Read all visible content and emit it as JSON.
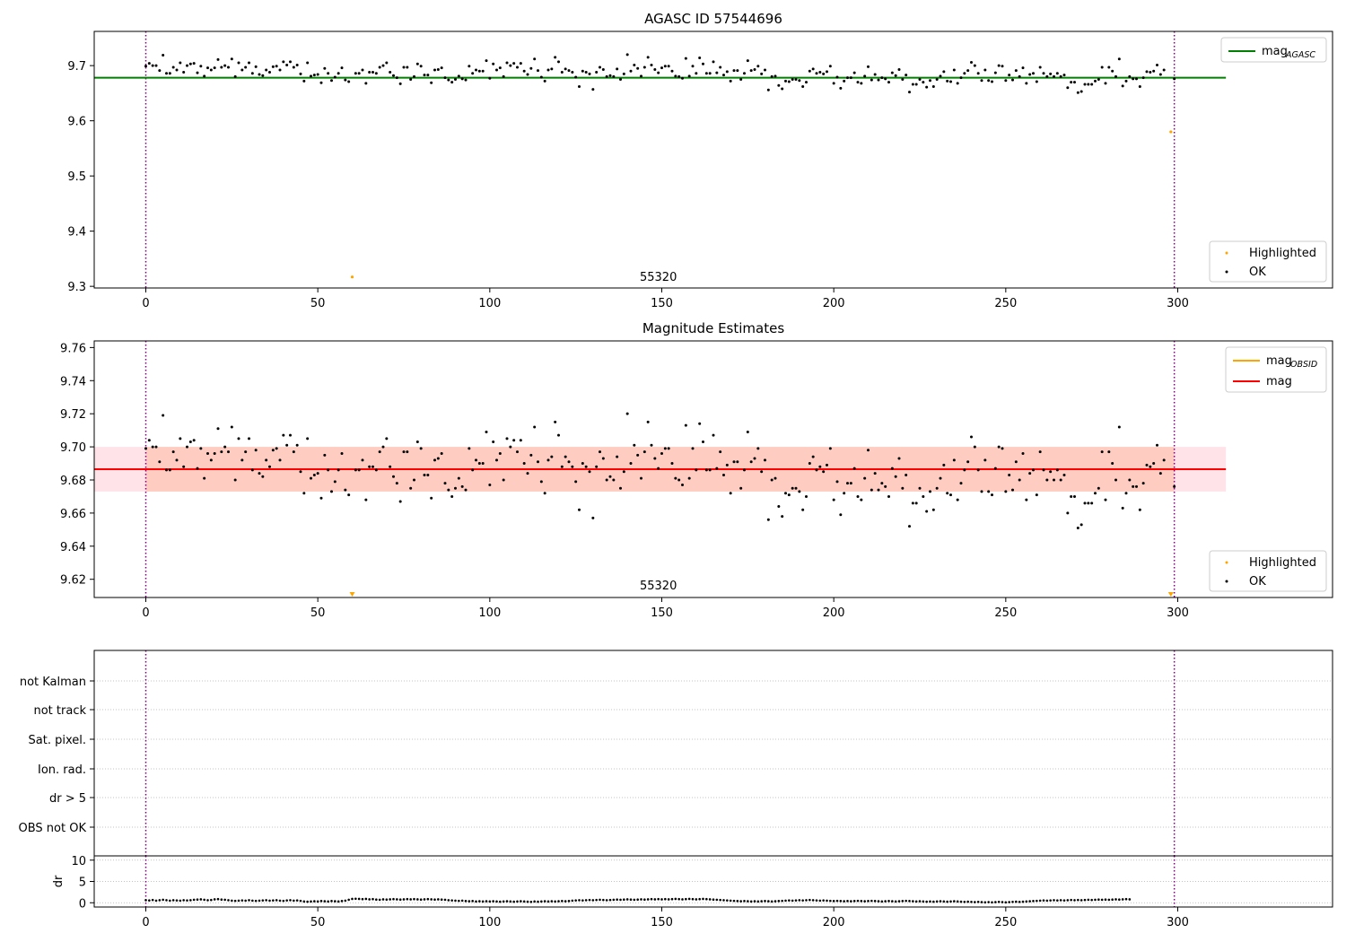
{
  "chart_data": [
    {
      "type": "scatter",
      "title": "AGASC ID 57544696",
      "xlim": [
        -15,
        345
      ],
      "ylim": [
        9.297,
        9.762
      ],
      "x_ticks": [
        0,
        50,
        100,
        150,
        200,
        250,
        300
      ],
      "y_ticks": [
        9.3,
        9.4,
        9.5,
        9.6,
        9.7
      ],
      "y_tick_labels": [
        "9.3",
        "9.4",
        "9.5",
        "9.6",
        "9.7"
      ],
      "vlines": [
        0,
        299
      ],
      "obsid_label": "55320",
      "obsid_label_x": 149,
      "lines": [
        {
          "name": "mag_AGASC",
          "y": 9.678,
          "x_range": [
            -15,
            314
          ],
          "color": "#008000"
        }
      ],
      "legend_lines": [
        {
          "main": "mag",
          "sub": "AGASC",
          "color": "#008000"
        }
      ],
      "legend_points": [
        {
          "label": "Highlighted",
          "color": "#ffa500"
        },
        {
          "label": "OK",
          "color": "#000000"
        }
      ],
      "highlighted": [
        {
          "x": 60,
          "y": 9.317
        },
        {
          "x": 298,
          "y": 9.58
        }
      ],
      "ok_series": "ok_points"
    },
    {
      "type": "scatter",
      "title": "Magnitude Estimates",
      "xlim": [
        -15,
        345
      ],
      "ylim": [
        9.609,
        9.764
      ],
      "x_ticks": [
        0,
        50,
        100,
        150,
        200,
        250,
        300
      ],
      "y_ticks": [
        9.62,
        9.64,
        9.66,
        9.68,
        9.7,
        9.72,
        9.74,
        9.76
      ],
      "y_tick_labels": [
        "9.62",
        "9.64",
        "9.66",
        "9.68",
        "9.70",
        "9.72",
        "9.74",
        "9.76"
      ],
      "vlines": [
        0,
        299
      ],
      "obsid_label": "55320",
      "obsid_label_x": 149,
      "bands": [
        {
          "x_range": [
            -15,
            314
          ],
          "y_range": [
            9.673,
            9.7
          ],
          "color": "#ffc0cb",
          "opacity": 0.45
        },
        {
          "x_range": [
            0,
            299
          ],
          "y_range": [
            9.673,
            9.7
          ],
          "color": "#ffa07a",
          "opacity": 0.35
        }
      ],
      "lines": [
        {
          "name": "mag_OBSID",
          "y": 9.6865,
          "x_range": [
            0,
            299
          ],
          "color": "#ffa500"
        },
        {
          "name": "mag",
          "y": 9.6865,
          "x_range": [
            -15,
            314
          ],
          "color": "#ff0000"
        }
      ],
      "legend_lines": [
        {
          "main": "mag",
          "sub": "OBSID",
          "color": "#ffa500"
        },
        {
          "main": "mag",
          "sub": "",
          "color": "#ff0000"
        }
      ],
      "legend_points": [
        {
          "label": "Highlighted",
          "color": "#ffa500"
        },
        {
          "label": "OK",
          "color": "#000000"
        }
      ],
      "highlighted_markers": [
        {
          "x": 60,
          "marker": "triangle-down"
        },
        {
          "x": 298,
          "marker": "triangle-down"
        }
      ],
      "ok_series": "ok_points"
    },
    {
      "type": "scatter",
      "title": "",
      "xlim": [
        -15,
        345
      ],
      "x_ticks": [
        0,
        50,
        100,
        150,
        200,
        250,
        300
      ],
      "flag_rows": [
        "not Kalman",
        "not track",
        "Sat. pixel.",
        "Ion. rad.",
        "dr > 5",
        "OBS not OK"
      ],
      "vlines": [
        0,
        299
      ],
      "grid": "dotted"
    },
    {
      "type": "line",
      "title": "",
      "ylabel": "dr",
      "xlim": [
        -15,
        345
      ],
      "ylim": [
        -1,
        11
      ],
      "x_ticks": [
        0,
        50,
        100,
        150,
        200,
        250,
        300
      ],
      "x_tick_labels": [
        "0",
        "50",
        "100",
        "150",
        "200",
        "250",
        "300"
      ],
      "y_ticks": [
        0,
        5,
        10
      ],
      "y_tick_labels": [
        "0",
        "5",
        "10"
      ],
      "vlines": [
        0,
        299
      ],
      "dr": [
        0.6,
        0.55,
        0.65,
        0.5,
        0.6,
        0.7,
        0.6,
        0.5,
        0.6,
        0.55,
        0.5,
        0.6,
        0.55,
        0.6,
        0.7,
        0.75,
        0.8,
        0.7,
        0.6,
        0.65,
        0.8,
        0.85,
        0.75,
        0.7,
        0.6,
        0.5,
        0.45,
        0.5,
        0.55,
        0.5,
        0.6,
        0.5,
        0.45,
        0.5,
        0.55,
        0.6,
        0.5,
        0.55,
        0.6,
        0.5,
        0.45,
        0.55,
        0.6,
        0.5,
        0.55,
        0.45,
        0.3,
        0.25,
        0.3,
        0.35,
        0.3,
        0.4,
        0.35,
        0.3,
        0.4,
        0.35,
        0.3,
        0.4,
        0.5,
        0.7,
        0.9,
        0.95,
        0.9,
        0.85,
        0.9,
        0.8,
        0.85,
        0.75,
        0.7,
        0.8,
        0.75,
        0.8,
        0.85,
        0.8,
        0.75,
        0.8,
        0.85,
        0.8,
        0.85,
        0.8,
        0.75,
        0.8,
        0.85,
        0.8,
        0.75,
        0.8,
        0.75,
        0.7,
        0.6,
        0.55,
        0.5,
        0.45,
        0.5,
        0.4,
        0.35,
        0.4,
        0.3,
        0.35,
        0.3,
        0.35,
        0.3,
        0.35,
        0.3,
        0.25,
        0.3,
        0.35,
        0.3,
        0.25,
        0.3,
        0.35,
        0.3,
        0.25,
        0.2,
        0.3,
        0.25,
        0.3,
        0.35,
        0.3,
        0.35,
        0.3,
        0.35,
        0.4,
        0.35,
        0.4,
        0.5,
        0.55,
        0.6,
        0.55,
        0.6,
        0.65,
        0.6,
        0.65,
        0.7,
        0.65,
        0.6,
        0.65,
        0.7,
        0.75,
        0.7,
        0.75,
        0.8,
        0.75,
        0.7,
        0.75,
        0.8,
        0.75,
        0.8,
        0.85,
        0.8,
        0.85,
        0.8,
        0.85,
        0.8,
        0.85,
        0.9,
        0.85,
        0.8,
        0.85,
        0.9,
        0.85,
        0.8,
        0.85,
        0.9,
        0.85,
        0.8,
        0.75,
        0.7,
        0.65,
        0.6,
        0.55,
        0.5,
        0.45,
        0.4,
        0.35,
        0.4,
        0.35,
        0.3,
        0.35,
        0.3,
        0.35,
        0.4,
        0.35,
        0.3,
        0.35,
        0.4,
        0.45,
        0.5,
        0.55,
        0.5,
        0.55,
        0.6,
        0.55,
        0.6,
        0.65,
        0.6,
        0.55,
        0.5,
        0.55,
        0.5,
        0.45,
        0.4,
        0.45,
        0.4,
        0.35,
        0.4,
        0.35,
        0.4,
        0.45,
        0.4,
        0.35,
        0.4,
        0.45,
        0.4,
        0.35,
        0.3,
        0.35,
        0.4,
        0.35,
        0.3,
        0.35,
        0.4,
        0.45,
        0.4,
        0.35,
        0.3,
        0.35,
        0.3,
        0.25,
        0.3,
        0.25,
        0.3,
        0.35,
        0.3,
        0.25,
        0.3,
        0.35,
        0.3,
        0.25,
        0.2,
        0.25,
        0.2,
        0.15,
        0.2,
        0.15,
        0.1,
        0.15,
        0.1,
        0.15,
        0.2,
        0.15,
        0.1,
        0.15,
        0.2,
        0.25,
        0.2,
        0.25,
        0.3,
        0.35,
        0.4,
        0.45,
        0.5,
        0.55,
        0.5,
        0.55,
        0.6,
        0.55,
        0.6,
        0.55,
        0.6,
        0.65,
        0.6,
        0.65,
        0.6,
        0.65,
        0.7,
        0.65,
        0.7,
        0.75,
        0.7,
        0.75,
        0.7,
        0.75,
        0.8,
        0.75,
        0.8,
        0.85,
        0.8
      ],
      "grid": "dotted"
    }
  ],
  "ok_points": [
    [
      0,
      9.699
    ],
    [
      1,
      9.704
    ],
    [
      2,
      9.7
    ],
    [
      3,
      9.7
    ],
    [
      4,
      9.691
    ],
    [
      5,
      9.719
    ],
    [
      6,
      9.686
    ],
    [
      7,
      9.686
    ],
    [
      8,
      9.697
    ],
    [
      9,
      9.692
    ],
    [
      10,
      9.705
    ],
    [
      11,
      9.688
    ],
    [
      12,
      9.7
    ],
    [
      13,
      9.703
    ],
    [
      14,
      9.704
    ],
    [
      15,
      9.687
    ],
    [
      16,
      9.699
    ],
    [
      17,
      9.681
    ],
    [
      18,
      9.696
    ],
    [
      19,
      9.692
    ],
    [
      20,
      9.696
    ],
    [
      21,
      9.711
    ],
    [
      22,
      9.697
    ],
    [
      23,
      9.7
    ],
    [
      24,
      9.697
    ],
    [
      25,
      9.712
    ],
    [
      26,
      9.68
    ],
    [
      27,
      9.705
    ],
    [
      28,
      9.692
    ],
    [
      29,
      9.697
    ],
    [
      30,
      9.705
    ],
    [
      31,
      9.686
    ],
    [
      32,
      9.698
    ],
    [
      33,
      9.684
    ],
    [
      34,
      9.682
    ],
    [
      35,
      9.692
    ],
    [
      36,
      9.688
    ],
    [
      37,
      9.698
    ],
    [
      38,
      9.699
    ],
    [
      39,
      9.692
    ],
    [
      40,
      9.707
    ],
    [
      41,
      9.701
    ],
    [
      42,
      9.707
    ],
    [
      43,
      9.697
    ],
    [
      44,
      9.701
    ],
    [
      45,
      9.685
    ],
    [
      46,
      9.672
    ],
    [
      47,
      9.705
    ],
    [
      48,
      9.681
    ],
    [
      49,
      9.683
    ],
    [
      50,
      9.684
    ],
    [
      51,
      9.669
    ],
    [
      52,
      9.695
    ],
    [
      53,
      9.686
    ],
    [
      54,
      9.673
    ],
    [
      55,
      9.679
    ],
    [
      56,
      9.686
    ],
    [
      57,
      9.696
    ],
    [
      58,
      9.674
    ],
    [
      59,
      9.671
    ],
    [
      61,
      9.686
    ],
    [
      62,
      9.686
    ],
    [
      63,
      9.692
    ],
    [
      64,
      9.668
    ],
    [
      65,
      9.688
    ],
    [
      66,
      9.688
    ],
    [
      67,
      9.686
    ],
    [
      68,
      9.697
    ],
    [
      69,
      9.7
    ],
    [
      70,
      9.705
    ],
    [
      71,
      9.688
    ],
    [
      72,
      9.682
    ],
    [
      73,
      9.678
    ],
    [
      74,
      9.667
    ],
    [
      75,
      9.697
    ],
    [
      76,
      9.697
    ],
    [
      77,
      9.675
    ],
    [
      78,
      9.68
    ],
    [
      79,
      9.703
    ],
    [
      80,
      9.699
    ],
    [
      81,
      9.683
    ],
    [
      82,
      9.683
    ],
    [
      83,
      9.669
    ],
    [
      84,
      9.692
    ],
    [
      85,
      9.693
    ],
    [
      86,
      9.696
    ],
    [
      87,
      9.678
    ],
    [
      88,
      9.674
    ],
    [
      89,
      9.67
    ],
    [
      90,
      9.675
    ],
    [
      91,
      9.681
    ],
    [
      92,
      9.676
    ],
    [
      93,
      9.674
    ],
    [
      94,
      9.699
    ],
    [
      95,
      9.686
    ],
    [
      96,
      9.692
    ],
    [
      97,
      9.69
    ],
    [
      98,
      9.69
    ],
    [
      99,
      9.709
    ],
    [
      100,
      9.677
    ],
    [
      101,
      9.703
    ],
    [
      102,
      9.692
    ],
    [
      103,
      9.696
    ],
    [
      104,
      9.68
    ],
    [
      105,
      9.705
    ],
    [
      106,
      9.7
    ],
    [
      107,
      9.704
    ],
    [
      108,
      9.697
    ],
    [
      109,
      9.704
    ],
    [
      110,
      9.69
    ],
    [
      111,
      9.684
    ],
    [
      112,
      9.695
    ],
    [
      113,
      9.712
    ],
    [
      114,
      9.691
    ],
    [
      115,
      9.679
    ],
    [
      116,
      9.672
    ],
    [
      117,
      9.692
    ],
    [
      118,
      9.694
    ],
    [
      119,
      9.715
    ],
    [
      120,
      9.707
    ],
    [
      121,
      9.688
    ],
    [
      122,
      9.694
    ],
    [
      123,
      9.691
    ],
    [
      124,
      9.688
    ],
    [
      125,
      9.679
    ],
    [
      126,
      9.662
    ],
    [
      127,
      9.69
    ],
    [
      128,
      9.688
    ],
    [
      129,
      9.685
    ],
    [
      130,
      9.657
    ],
    [
      131,
      9.688
    ],
    [
      132,
      9.697
    ],
    [
      133,
      9.693
    ],
    [
      134,
      9.68
    ],
    [
      135,
      9.682
    ],
    [
      136,
      9.68
    ],
    [
      137,
      9.694
    ],
    [
      138,
      9.675
    ],
    [
      139,
      9.685
    ],
    [
      140,
      9.72
    ],
    [
      141,
      9.69
    ],
    [
      142,
      9.701
    ],
    [
      143,
      9.695
    ],
    [
      144,
      9.681
    ],
    [
      145,
      9.697
    ],
    [
      146,
      9.715
    ],
    [
      147,
      9.701
    ],
    [
      148,
      9.693
    ],
    [
      149,
      9.687
    ],
    [
      150,
      9.696
    ],
    [
      151,
      9.699
    ],
    [
      152,
      9.699
    ],
    [
      153,
      9.69
    ],
    [
      154,
      9.681
    ],
    [
      155,
      9.68
    ],
    [
      156,
      9.677
    ],
    [
      157,
      9.713
    ],
    [
      158,
      9.681
    ],
    [
      159,
      9.699
    ],
    [
      160,
      9.686
    ],
    [
      161,
      9.714
    ],
    [
      162,
      9.703
    ],
    [
      163,
      9.686
    ],
    [
      164,
      9.686
    ],
    [
      165,
      9.707
    ],
    [
      166,
      9.687
    ],
    [
      167,
      9.697
    ],
    [
      168,
      9.683
    ],
    [
      169,
      9.689
    ],
    [
      170,
      9.672
    ],
    [
      171,
      9.691
    ],
    [
      172,
      9.691
    ],
    [
      173,
      9.675
    ],
    [
      174,
      9.686
    ],
    [
      175,
      9.709
    ],
    [
      176,
      9.691
    ],
    [
      177,
      9.693
    ],
    [
      178,
      9.699
    ],
    [
      179,
      9.685
    ],
    [
      180,
      9.692
    ],
    [
      181,
      9.656
    ],
    [
      182,
      9.68
    ],
    [
      183,
      9.681
    ],
    [
      184,
      9.664
    ],
    [
      185,
      9.658
    ],
    [
      186,
      9.672
    ],
    [
      187,
      9.671
    ],
    [
      188,
      9.675
    ],
    [
      189,
      9.675
    ],
    [
      190,
      9.673
    ],
    [
      191,
      9.662
    ],
    [
      192,
      9.67
    ],
    [
      193,
      9.69
    ],
    [
      194,
      9.694
    ],
    [
      195,
      9.686
    ],
    [
      196,
      9.688
    ],
    [
      197,
      9.685
    ],
    [
      198,
      9.689
    ],
    [
      199,
      9.699
    ],
    [
      200,
      9.668
    ],
    [
      201,
      9.679
    ],
    [
      202,
      9.659
    ],
    [
      203,
      9.672
    ],
    [
      204,
      9.678
    ],
    [
      205,
      9.678
    ],
    [
      206,
      9.687
    ],
    [
      207,
      9.67
    ],
    [
      208,
      9.668
    ],
    [
      209,
      9.681
    ],
    [
      210,
      9.698
    ],
    [
      211,
      9.674
    ],
    [
      212,
      9.684
    ],
    [
      213,
      9.674
    ],
    [
      214,
      9.678
    ],
    [
      215,
      9.676
    ],
    [
      216,
      9.67
    ],
    [
      217,
      9.687
    ],
    [
      218,
      9.682
    ],
    [
      219,
      9.693
    ],
    [
      220,
      9.675
    ],
    [
      221,
      9.683
    ],
    [
      222,
      9.652
    ],
    [
      223,
      9.666
    ],
    [
      224,
      9.666
    ],
    [
      225,
      9.675
    ],
    [
      226,
      9.67
    ],
    [
      227,
      9.661
    ],
    [
      228,
      9.673
    ],
    [
      229,
      9.662
    ],
    [
      230,
      9.675
    ],
    [
      231,
      9.681
    ],
    [
      232,
      9.689
    ],
    [
      233,
      9.672
    ],
    [
      234,
      9.671
    ],
    [
      235,
      9.692
    ],
    [
      236,
      9.668
    ],
    [
      237,
      9.678
    ],
    [
      238,
      9.686
    ],
    [
      239,
      9.691
    ],
    [
      240,
      9.706
    ],
    [
      241,
      9.7
    ],
    [
      242,
      9.686
    ],
    [
      243,
      9.673
    ],
    [
      244,
      9.692
    ],
    [
      245,
      9.673
    ],
    [
      246,
      9.671
    ],
    [
      247,
      9.687
    ],
    [
      248,
      9.7
    ],
    [
      249,
      9.699
    ],
    [
      250,
      9.673
    ],
    [
      251,
      9.683
    ],
    [
      252,
      9.674
    ],
    [
      253,
      9.691
    ],
    [
      254,
      9.68
    ],
    [
      255,
      9.696
    ],
    [
      256,
      9.668
    ],
    [
      257,
      9.684
    ],
    [
      258,
      9.686
    ],
    [
      259,
      9.671
    ],
    [
      260,
      9.697
    ],
    [
      261,
      9.686
    ],
    [
      262,
      9.68
    ],
    [
      263,
      9.685
    ],
    [
      264,
      9.68
    ],
    [
      265,
      9.686
    ],
    [
      266,
      9.68
    ],
    [
      267,
      9.683
    ],
    [
      268,
      9.66
    ],
    [
      269,
      9.67
    ],
    [
      270,
      9.67
    ],
    [
      271,
      9.651
    ],
    [
      272,
      9.653
    ],
    [
      273,
      9.666
    ],
    [
      274,
      9.666
    ],
    [
      275,
      9.666
    ],
    [
      276,
      9.672
    ],
    [
      277,
      9.675
    ],
    [
      278,
      9.697
    ],
    [
      279,
      9.668
    ],
    [
      280,
      9.697
    ],
    [
      281,
      9.69
    ],
    [
      282,
      9.68
    ],
    [
      283,
      9.712
    ],
    [
      284,
      9.663
    ],
    [
      285,
      9.672
    ],
    [
      286,
      9.68
    ],
    [
      287,
      9.676
    ],
    [
      288,
      9.676
    ],
    [
      289,
      9.662
    ],
    [
      290,
      9.678
    ],
    [
      291,
      9.689
    ],
    [
      292,
      9.688
    ],
    [
      293,
      9.69
    ],
    [
      294,
      9.701
    ],
    [
      295,
      9.684
    ],
    [
      296,
      9.692
    ],
    [
      299,
      9.676
    ]
  ]
}
